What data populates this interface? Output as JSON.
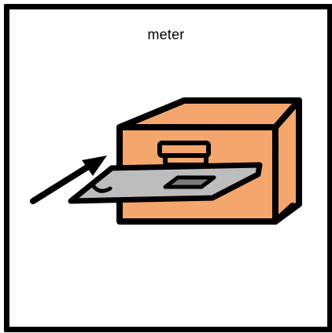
{
  "pictogram": {
    "caption": "meter",
    "icon": "insert-card-into-machine-icon",
    "colors": {
      "frame": "#000000",
      "box": "#F4A66C",
      "card": "#BDBDBD",
      "slot": "#7A7A7A",
      "stroke": "#000000",
      "background": "#FFFFFF"
    }
  }
}
